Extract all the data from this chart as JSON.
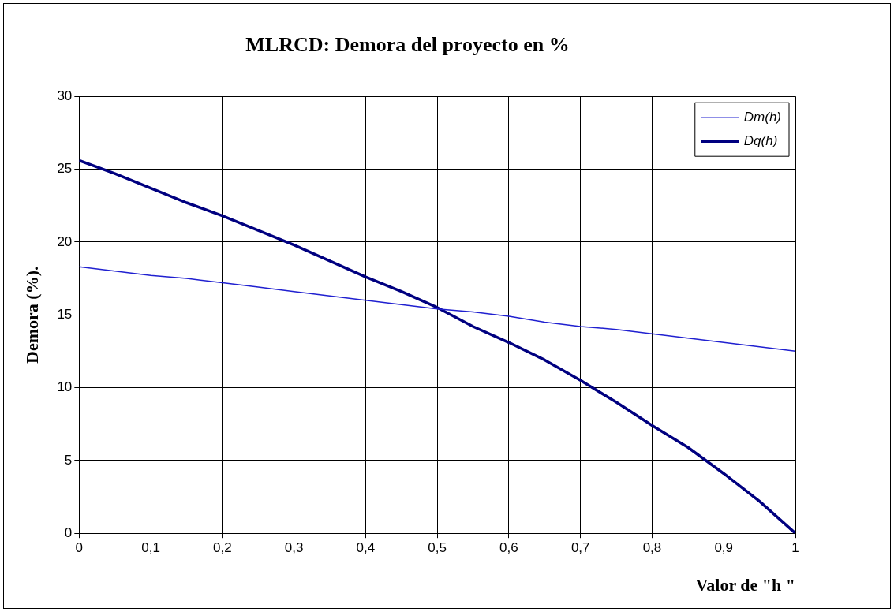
{
  "chart_data": {
    "type": "line",
    "title": "MLRCD: Demora del proyecto en %",
    "xlabel": "Valor de \"h \"",
    "ylabel": "Demora (%).",
    "x": [
      0,
      0.05,
      0.1,
      0.15,
      0.2,
      0.25,
      0.3,
      0.35,
      0.4,
      0.45,
      0.5,
      0.55,
      0.6,
      0.65,
      0.7,
      0.75,
      0.8,
      0.85,
      0.9,
      0.95,
      1
    ],
    "series": [
      {
        "name": "Dm(h)",
        "color": "#2020d0",
        "values": [
          18.3,
          18.0,
          17.7,
          17.5,
          17.2,
          16.9,
          16.6,
          16.3,
          16.0,
          15.7,
          15.4,
          15.2,
          14.9,
          14.5,
          14.2,
          14.0,
          13.7,
          13.4,
          13.1,
          12.8,
          12.5
        ]
      },
      {
        "name": "Dq(h)",
        "color": "#000080",
        "values": [
          25.6,
          24.7,
          23.7,
          22.7,
          21.8,
          20.8,
          19.8,
          18.7,
          17.6,
          16.6,
          15.5,
          14.2,
          13.1,
          11.9,
          10.5,
          9.0,
          7.4,
          5.9,
          4.1,
          2.2,
          0
        ]
      }
    ],
    "xlim": [
      0,
      1
    ],
    "xticks": [
      {
        "value": 0,
        "label": "0"
      },
      {
        "value": 0.1,
        "label": "0,1"
      },
      {
        "value": 0.2,
        "label": "0,2"
      },
      {
        "value": 0.3,
        "label": "0,3"
      },
      {
        "value": 0.4,
        "label": "0,4"
      },
      {
        "value": 0.5,
        "label": "0,5"
      },
      {
        "value": 0.6,
        "label": "0,6"
      },
      {
        "value": 0.7,
        "label": "0,7"
      },
      {
        "value": 0.8,
        "label": "0,8"
      },
      {
        "value": 0.9,
        "label": "0,9"
      },
      {
        "value": 1,
        "label": "1"
      }
    ],
    "ylim": [
      0,
      30
    ],
    "yticks": [
      0,
      5,
      10,
      15,
      20,
      25,
      30
    ],
    "grid": true,
    "legend": "top right",
    "marker": "none",
    "line_style": "solid"
  }
}
